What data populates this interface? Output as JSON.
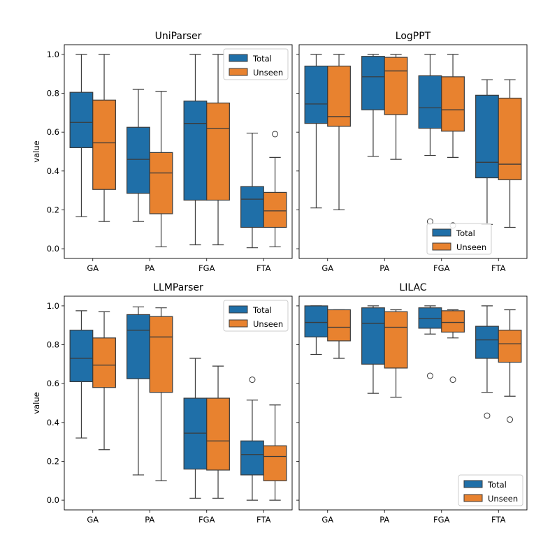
{
  "colors": {
    "total": "#1f6fa8",
    "unseen": "#e8822f",
    "median": "#3b3b3b",
    "whisker": "#3b3b3b"
  },
  "chart_data": [
    {
      "type": "box",
      "title": "UniParser",
      "xlabel": "",
      "ylabel": "value",
      "categories": [
        "GA",
        "PA",
        "FGA",
        "FTA"
      ],
      "ylim": [
        -0.05,
        1.05
      ],
      "yticks": [
        "0.0",
        "0.2",
        "0.4",
        "0.6",
        "0.8",
        "1.0"
      ],
      "legend": {
        "position": "top-right",
        "entries": [
          "Total",
          "Unseen"
        ]
      },
      "series": [
        {
          "name": "Total",
          "boxes": [
            {
              "min": 0.165,
              "q1": 0.52,
              "median": 0.65,
              "q3": 0.805,
              "max": 1.0,
              "outliers": []
            },
            {
              "min": 0.14,
              "q1": 0.285,
              "median": 0.46,
              "q3": 0.625,
              "max": 0.82,
              "outliers": []
            },
            {
              "min": 0.02,
              "q1": 0.25,
              "median": 0.645,
              "q3": 0.76,
              "max": 1.0,
              "outliers": []
            },
            {
              "min": 0.005,
              "q1": 0.11,
              "median": 0.255,
              "q3": 0.32,
              "max": 0.595,
              "outliers": []
            }
          ]
        },
        {
          "name": "Unseen",
          "boxes": [
            {
              "min": 0.14,
              "q1": 0.305,
              "median": 0.545,
              "q3": 0.765,
              "max": 1.0,
              "outliers": []
            },
            {
              "min": 0.01,
              "q1": 0.18,
              "median": 0.39,
              "q3": 0.495,
              "max": 0.81,
              "outliers": []
            },
            {
              "min": 0.02,
              "q1": 0.25,
              "median": 0.62,
              "q3": 0.75,
              "max": 1.0,
              "outliers": []
            },
            {
              "min": 0.01,
              "q1": 0.11,
              "median": 0.195,
              "q3": 0.29,
              "max": 0.47,
              "outliers": [
                0.59
              ]
            }
          ]
        }
      ]
    },
    {
      "type": "box",
      "title": "LogPPT",
      "xlabel": "",
      "ylabel": "",
      "categories": [
        "GA",
        "PA",
        "FGA",
        "FTA"
      ],
      "ylim": [
        -0.05,
        1.05
      ],
      "yticks": [],
      "legend": {
        "position": "bottom-center",
        "entries": [
          "Total",
          "Unseen"
        ]
      },
      "series": [
        {
          "name": "Total",
          "boxes": [
            {
              "min": 0.21,
              "q1": 0.645,
              "median": 0.745,
              "q3": 0.94,
              "max": 1.0,
              "outliers": []
            },
            {
              "min": 0.475,
              "q1": 0.715,
              "median": 0.885,
              "q3": 0.99,
              "max": 1.0,
              "outliers": []
            },
            {
              "min": 0.48,
              "q1": 0.62,
              "median": 0.725,
              "q3": 0.89,
              "max": 1.0,
              "outliers": [
                0.14
              ]
            },
            {
              "min": 0.125,
              "q1": 0.365,
              "median": 0.445,
              "q3": 0.79,
              "max": 0.87,
              "outliers": []
            }
          ]
        },
        {
          "name": "Unseen",
          "boxes": [
            {
              "min": 0.2,
              "q1": 0.63,
              "median": 0.68,
              "q3": 0.94,
              "max": 1.0,
              "outliers": []
            },
            {
              "min": 0.46,
              "q1": 0.69,
              "median": 0.915,
              "q3": 0.985,
              "max": 1.0,
              "outliers": []
            },
            {
              "min": 0.47,
              "q1": 0.605,
              "median": 0.715,
              "q3": 0.885,
              "max": 1.0,
              "outliers": [
                0.12
              ]
            },
            {
              "min": 0.11,
              "q1": 0.355,
              "median": 0.435,
              "q3": 0.775,
              "max": 0.87,
              "outliers": []
            }
          ]
        }
      ]
    },
    {
      "type": "box",
      "title": "LLMParser",
      "xlabel": "",
      "ylabel": "value",
      "categories": [
        "GA",
        "PA",
        "FGA",
        "FTA"
      ],
      "ylim": [
        -0.05,
        1.05
      ],
      "yticks": [
        "0.0",
        "0.2",
        "0.4",
        "0.6",
        "0.8",
        "1.0"
      ],
      "legend": {
        "position": "top-right",
        "entries": [
          "Total",
          "Unseen"
        ]
      },
      "series": [
        {
          "name": "Total",
          "boxes": [
            {
              "min": 0.32,
              "q1": 0.61,
              "median": 0.73,
              "q3": 0.875,
              "max": 0.975,
              "outliers": []
            },
            {
              "min": 0.13,
              "q1": 0.625,
              "median": 0.875,
              "q3": 0.955,
              "max": 0.995,
              "outliers": []
            },
            {
              "min": 0.01,
              "q1": 0.16,
              "median": 0.345,
              "q3": 0.525,
              "max": 0.73,
              "outliers": []
            },
            {
              "min": 0.0,
              "q1": 0.13,
              "median": 0.235,
              "q3": 0.305,
              "max": 0.515,
              "outliers": [
                0.62
              ]
            }
          ]
        },
        {
          "name": "Unseen",
          "boxes": [
            {
              "min": 0.26,
              "q1": 0.58,
              "median": 0.695,
              "q3": 0.835,
              "max": 0.97,
              "outliers": []
            },
            {
              "min": 0.1,
              "q1": 0.555,
              "median": 0.84,
              "q3": 0.945,
              "max": 0.99,
              "outliers": []
            },
            {
              "min": 0.01,
              "q1": 0.155,
              "median": 0.305,
              "q3": 0.525,
              "max": 0.69,
              "outliers": []
            },
            {
              "min": 0.0,
              "q1": 0.1,
              "median": 0.225,
              "q3": 0.28,
              "max": 0.49,
              "outliers": []
            }
          ]
        }
      ]
    },
    {
      "type": "box",
      "title": "LILAC",
      "xlabel": "",
      "ylabel": "",
      "categories": [
        "GA",
        "PA",
        "FGA",
        "FTA"
      ],
      "ylim": [
        -0.05,
        1.05
      ],
      "yticks": [],
      "legend": {
        "position": "bottom-right",
        "entries": [
          "Total",
          "Unseen"
        ]
      },
      "series": [
        {
          "name": "Total",
          "boxes": [
            {
              "min": 0.75,
              "q1": 0.84,
              "median": 0.915,
              "q3": 1.0,
              "max": 1.0,
              "outliers": []
            },
            {
              "min": 0.55,
              "q1": 0.7,
              "median": 0.91,
              "q3": 0.99,
              "max": 1.0,
              "outliers": []
            },
            {
              "min": 0.855,
              "q1": 0.885,
              "median": 0.935,
              "q3": 0.99,
              "max": 1.0,
              "outliers": [
                0.64
              ]
            },
            {
              "min": 0.555,
              "q1": 0.73,
              "median": 0.825,
              "q3": 0.895,
              "max": 1.0,
              "outliers": [
                0.435
              ]
            }
          ]
        },
        {
          "name": "Unseen",
          "boxes": [
            {
              "min": 0.73,
              "q1": 0.82,
              "median": 0.89,
              "q3": 0.98,
              "max": 0.98,
              "outliers": []
            },
            {
              "min": 0.53,
              "q1": 0.68,
              "median": 0.89,
              "q3": 0.97,
              "max": 0.98,
              "outliers": []
            },
            {
              "min": 0.835,
              "q1": 0.865,
              "median": 0.915,
              "q3": 0.975,
              "max": 0.98,
              "outliers": [
                0.62
              ]
            },
            {
              "min": 0.535,
              "q1": 0.71,
              "median": 0.805,
              "q3": 0.875,
              "max": 0.98,
              "outliers": [
                0.415
              ]
            }
          ]
        }
      ]
    }
  ]
}
